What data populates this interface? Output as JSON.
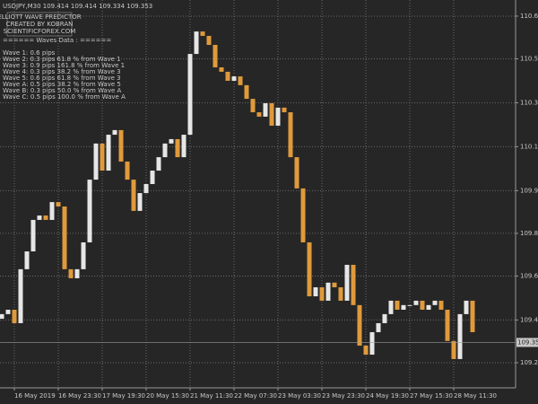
{
  "chart_data": {
    "type": "candlestick",
    "title": "USDJPY,M30  109.414 109.414 109.334 109.353",
    "categories": [
      null,
      null,
      "16 May 2019",
      null,
      null,
      null,
      null,
      null,
      null,
      "16 May 23:30",
      null,
      null,
      null,
      null,
      null,
      null,
      "17 May 19:30",
      null,
      null,
      null,
      null,
      null,
      null,
      "20 May 15:30",
      null,
      null,
      null,
      null,
      null,
      null,
      "21 May 11:30",
      null,
      null,
      null,
      null,
      null,
      null,
      "22 May 07:30",
      null,
      null,
      null,
      null,
      null,
      null,
      "23 May 03:30",
      null,
      null,
      null,
      null,
      null,
      null,
      "23 May 23:30",
      null,
      null,
      null,
      null,
      null,
      null,
      "24 May 19:30",
      null,
      null,
      null,
      null,
      null,
      null,
      "27 May 15:30",
      null,
      null,
      null,
      null,
      null,
      null,
      "28 May 11:30",
      null,
      null,
      null
    ],
    "open": [
      109.45,
      109.469,
      109.487,
      109.432,
      109.653,
      109.726,
      109.855,
      109.873,
      109.855,
      109.928,
      109.91,
      109.653,
      109.616,
      109.653,
      109.763,
      110.02,
      110.168,
      110.057,
      110.204,
      110.223,
      110.094,
      110.02,
      109.892,
      109.965,
      110.002,
      110.057,
      110.112,
      110.168,
      110.186,
      110.112,
      110.204,
      110.535,
      110.627,
      110.609,
      110.572,
      110.48,
      110.462,
      110.425,
      110.443,
      110.407,
      110.351,
      110.296,
      110.278,
      110.333,
      110.241,
      110.315,
      110.296,
      110.112,
      109.984,
      109.763,
      109.542,
      109.579,
      109.524,
      109.598,
      109.579,
      109.524,
      109.671,
      109.506,
      109.34,
      109.303,
      109.395,
      109.432,
      109.469,
      109.524,
      109.487,
      109.506,
      109.506,
      109.524,
      109.487,
      109.506,
      109.524,
      109.487,
      109.359,
      109.285,
      109.469,
      109.524
    ],
    "close": [
      109.469,
      109.487,
      109.432,
      109.653,
      109.726,
      109.855,
      109.873,
      109.855,
      109.928,
      109.91,
      109.653,
      109.616,
      109.653,
      109.763,
      110.02,
      110.168,
      110.057,
      110.204,
      110.223,
      110.094,
      110.02,
      109.892,
      109.965,
      110.002,
      110.057,
      110.112,
      110.168,
      110.186,
      110.112,
      110.204,
      110.535,
      110.627,
      110.609,
      110.572,
      110.48,
      110.462,
      110.425,
      110.443,
      110.407,
      110.351,
      110.296,
      110.278,
      110.333,
      110.241,
      110.315,
      110.296,
      110.112,
      109.984,
      109.763,
      109.542,
      109.579,
      109.524,
      109.598,
      109.579,
      109.524,
      109.671,
      109.506,
      109.34,
      109.303,
      109.395,
      109.432,
      109.469,
      109.524,
      109.487,
      109.506,
      109.506,
      109.524,
      109.487,
      109.506,
      109.524,
      109.487,
      109.359,
      109.285,
      109.469,
      109.524,
      109.395
    ],
    "up_color": "#e6e6e6",
    "down_color": "#e09a3c",
    "ylim": [
      109.167,
      110.756
    ],
    "yticks": [
      {
        "value": 110.69,
        "label": "110.690"
      },
      110.515,
      110.335,
      110.155,
      109.975,
      {
        "value": 109.8,
        "label": "109.800"
      },
      109.625,
      109.445,
      {
        "value": 109.27,
        "label": "109.270"
      }
    ],
    "current_price": 109.353,
    "grid": true,
    "indicator": {
      "header": [
        "ELLIOTT WAVE PREDICTOR",
        "CREATED BY KOBRAN",
        "SCIENTIFICFOREX.COM"
      ],
      "separator": "====== Waves Data : ======",
      "waves": [
        "Wave 1: 0.6 pips",
        "Wave 2: 0.3 pips 61.8 % from Wave 1",
        "Wave 3: 0.9 pips 161.8 % from Wave 1",
        "Wave 4: 0.3 pips 38.2 % from Wave 3",
        "Wave 5: 0.6 pips 61.8 % from Wave 3",
        "Wave A: 0.5 pips 38.2 % from Wave 5",
        "Wave B: 0.3 pips 50.0 % from Wave A",
        "Wave C: 0.5 pips 100.0 % from Wave A"
      ]
    }
  }
}
